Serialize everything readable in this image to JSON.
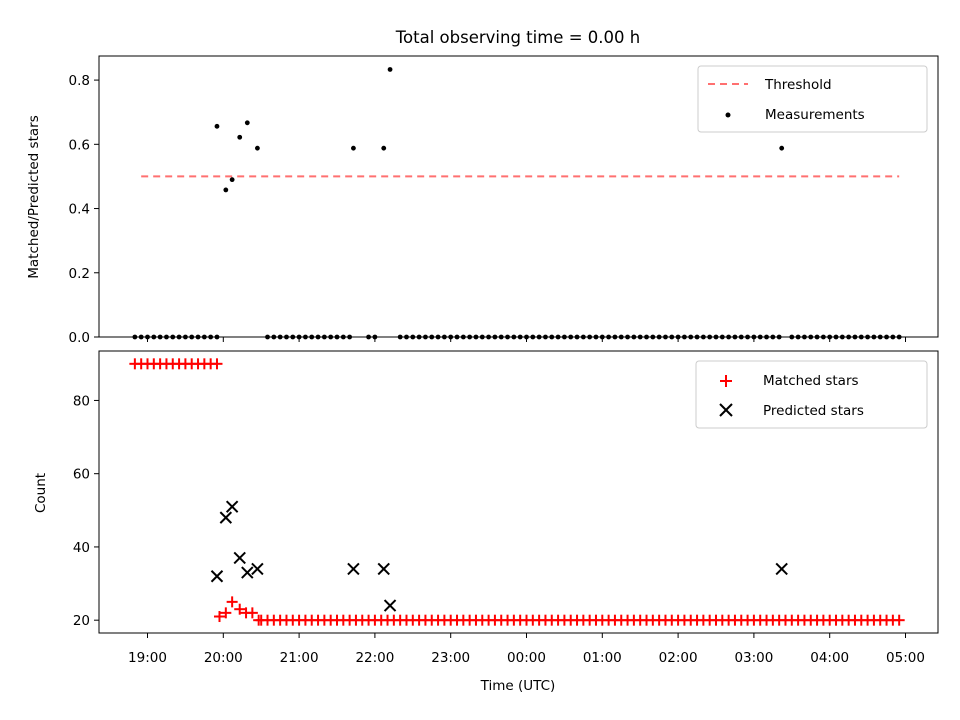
{
  "chart_data": [
    {
      "type": "scatter",
      "title": "Total observing time = 0.00 h",
      "ylabel": "Matched/Predicted stars",
      "xlabel": "",
      "ylim": [
        0,
        0.875
      ],
      "y_ticks": [
        "0.0",
        "0.2",
        "0.4",
        "0.6",
        "0.8"
      ],
      "legend_position": "top-right",
      "threshold": {
        "name": "Threshold",
        "value": 0.5,
        "x_start": "18:55",
        "x_end": "04:55",
        "color": "#ff7070"
      },
      "measurements": {
        "name": "Measurements",
        "color": "#000000",
        "points": [
          {
            "x": "19:55",
            "y": 0.656
          },
          {
            "x": "20:02",
            "y": 0.458
          },
          {
            "x": "20:07",
            "y": 0.49
          },
          {
            "x": "20:13",
            "y": 0.622
          },
          {
            "x": "20:19",
            "y": 0.667
          },
          {
            "x": "20:27",
            "y": 0.588
          },
          {
            "x": "21:43",
            "y": 0.588
          },
          {
            "x": "22:07",
            "y": 0.588
          },
          {
            "x": "22:12",
            "y": 0.833
          },
          {
            "x": "03:22",
            "y": 0.588
          }
        ],
        "zero_series": {
          "start": "18:50",
          "end": "04:58",
          "step_minutes": 5,
          "value": 0,
          "gaps": [
            [
              "19:58",
              "20:30"
            ],
            [
              "21:43",
              "21:50"
            ],
            [
              "22:05",
              "22:15"
            ],
            [
              "03:22",
              "03:25"
            ]
          ]
        }
      }
    },
    {
      "type": "scatter",
      "title": "",
      "ylabel": "Count",
      "xlabel": "Time (UTC)",
      "ylim": [
        16.5,
        93.5
      ],
      "y_ticks": [
        "20",
        "40",
        "60",
        "80"
      ],
      "x_ticks": [
        "19:00",
        "20:00",
        "21:00",
        "22:00",
        "23:00",
        "00:00",
        "01:00",
        "02:00",
        "03:00",
        "04:00",
        "05:00"
      ],
      "legend_position": "top-right",
      "matched": {
        "name": "Matched stars",
        "color": "#ff0000",
        "early": {
          "start": "18:50",
          "end": "19:55",
          "step_minutes": 5,
          "value": 90
        },
        "points": [
          {
            "x": "19:57",
            "y": 21
          },
          {
            "x": "20:02",
            "y": 22
          },
          {
            "x": "20:07",
            "y": 25
          },
          {
            "x": "20:13",
            "y": 23
          },
          {
            "x": "20:18",
            "y": 22
          },
          {
            "x": "20:23",
            "y": 22
          },
          {
            "x": "20:28",
            "y": 20
          }
        ],
        "late": {
          "start": "20:30",
          "end": "04:58",
          "step_minutes": 5,
          "value": 20
        }
      },
      "predicted": {
        "name": "Predicted stars",
        "color": "#000000",
        "points": [
          {
            "x": "19:55",
            "y": 32
          },
          {
            "x": "20:02",
            "y": 48
          },
          {
            "x": "20:07",
            "y": 51
          },
          {
            "x": "20:13",
            "y": 37
          },
          {
            "x": "20:19",
            "y": 33
          },
          {
            "x": "20:27",
            "y": 34
          },
          {
            "x": "21:43",
            "y": 34
          },
          {
            "x": "22:07",
            "y": 34
          },
          {
            "x": "22:12",
            "y": 24
          },
          {
            "x": "03:22",
            "y": 34
          }
        ]
      }
    }
  ]
}
